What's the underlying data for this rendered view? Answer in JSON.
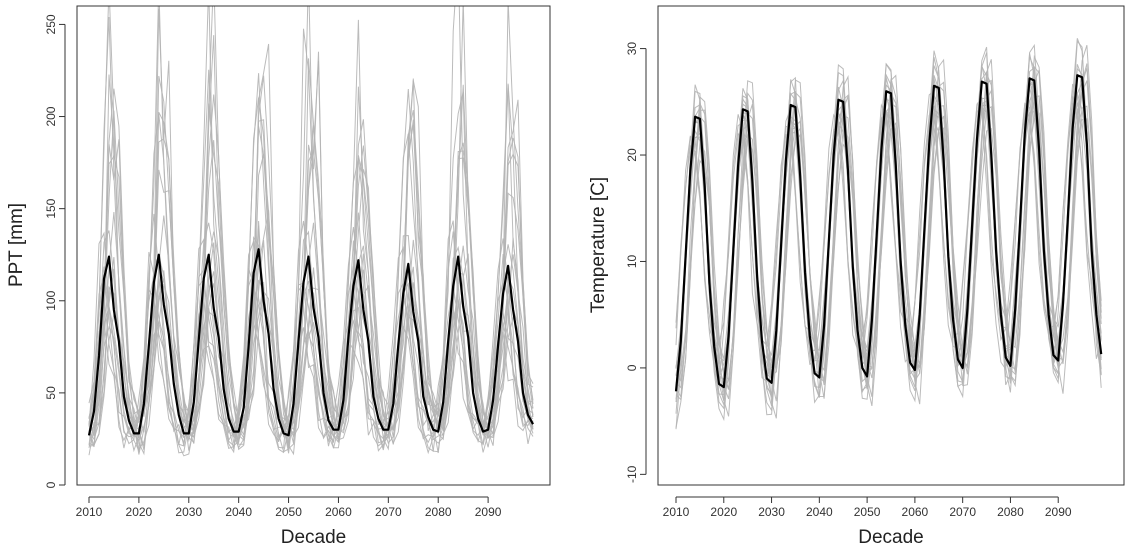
{
  "chart_data": [
    {
      "type": "line",
      "xlabel": "Decade",
      "ylabel": "PPT [mm]",
      "xlim": [
        2010,
        2100
      ],
      "ylim": [
        0,
        260
      ],
      "x_ticks": [
        2010,
        2020,
        2030,
        2040,
        2050,
        2060,
        2070,
        2080,
        2090
      ],
      "y_ticks": [
        0,
        50,
        100,
        150,
        200,
        250
      ],
      "grid": false,
      "legend": "none",
      "ensemble_members": 20,
      "colors": {
        "ensemble": "#b4b4b4",
        "mean": "#000000"
      },
      "series": [
        {
          "role": "ensemble-mean",
          "x": [
            2010,
            2011,
            2012,
            2013,
            2014,
            2015,
            2016,
            2017,
            2018,
            2019,
            2020,
            2021,
            2022,
            2023,
            2024,
            2025,
            2026,
            2027,
            2028,
            2029,
            2030,
            2031,
            2032,
            2033,
            2034,
            2035,
            2036,
            2037,
            2038,
            2039,
            2040,
            2041,
            2042,
            2043,
            2044,
            2045,
            2046,
            2047,
            2048,
            2049,
            2050,
            2051,
            2052,
            2053,
            2054,
            2055,
            2056,
            2057,
            2058,
            2059,
            2060,
            2061,
            2062,
            2063,
            2064,
            2065,
            2066,
            2067,
            2068,
            2069,
            2070,
            2071,
            2072,
            2073,
            2074,
            2075,
            2076,
            2077,
            2078,
            2079,
            2080,
            2081,
            2082,
            2083,
            2084,
            2085,
            2086,
            2087,
            2088,
            2089,
            2090,
            2091,
            2092,
            2093,
            2094,
            2095,
            2096,
            2097,
            2098,
            2099
          ],
          "values": [
            27,
            40,
            70,
            112,
            124,
            95,
            78,
            48,
            35,
            28,
            28,
            44,
            76,
            110,
            125,
            98,
            82,
            55,
            38,
            28,
            28,
            45,
            79,
            112,
            125,
            96,
            80,
            52,
            36,
            29,
            29,
            42,
            75,
            115,
            128,
            100,
            82,
            52,
            36,
            28,
            27,
            44,
            78,
            110,
            124,
            96,
            80,
            50,
            35,
            30,
            30,
            46,
            80,
            108,
            122,
            95,
            78,
            48,
            36,
            30,
            30,
            44,
            76,
            104,
            120,
            94,
            78,
            48,
            37,
            30,
            29,
            45,
            78,
            108,
            124,
            97,
            80,
            50,
            36,
            29,
            30,
            46,
            76,
            104,
            119,
            95,
            78,
            50,
            38,
            33
          ]
        }
      ]
    },
    {
      "type": "line",
      "xlabel": "Decade",
      "ylabel": "Temperature [C]",
      "xlim": [
        2010,
        2100
      ],
      "ylim": [
        -11,
        34
      ],
      "x_ticks": [
        2010,
        2020,
        2030,
        2040,
        2050,
        2060,
        2070,
        2080,
        2090
      ],
      "y_ticks": [
        -10,
        0,
        10,
        20,
        30
      ],
      "grid": false,
      "legend": "none",
      "ensemble_members": 20,
      "colors": {
        "ensemble": "#b4b4b4",
        "mean": "#000000"
      },
      "series": [
        {
          "role": "ensemble-mean",
          "x": [
            2010,
            2011,
            2012,
            2013,
            2014,
            2015,
            2016,
            2017,
            2018,
            2019,
            2020,
            2021,
            2022,
            2023,
            2024,
            2025,
            2026,
            2027,
            2028,
            2029,
            2030,
            2031,
            2032,
            2033,
            2034,
            2035,
            2036,
            2037,
            2038,
            2039,
            2040,
            2041,
            2042,
            2043,
            2044,
            2045,
            2046,
            2047,
            2048,
            2049,
            2050,
            2051,
            2052,
            2053,
            2054,
            2055,
            2056,
            2057,
            2058,
            2059,
            2060,
            2061,
            2062,
            2063,
            2064,
            2065,
            2066,
            2067,
            2068,
            2069,
            2070,
            2071,
            2072,
            2073,
            2074,
            2075,
            2076,
            2077,
            2078,
            2079,
            2080,
            2081,
            2082,
            2083,
            2084,
            2085,
            2086,
            2087,
            2088,
            2089,
            2090,
            2091,
            2092,
            2093,
            2094,
            2095,
            2096,
            2097,
            2098,
            2099
          ],
          "values": [
            -2.2,
            2.5,
            10.5,
            18.5,
            23.6,
            23.4,
            17,
            8,
            2,
            -1.5,
            -1.8,
            3,
            11,
            19,
            24.3,
            24.1,
            17.5,
            8.5,
            2.5,
            -1,
            -1.4,
            3.5,
            11.5,
            19.5,
            24.7,
            24.5,
            18,
            9,
            3,
            -0.5,
            -0.9,
            4,
            12,
            20,
            25.2,
            25,
            18.5,
            9.5,
            3.5,
            0,
            -0.8,
            4.5,
            12.5,
            20.5,
            26,
            25.8,
            19,
            10,
            4,
            0.5,
            -0.2,
            5,
            13,
            21,
            26.5,
            26.3,
            19.5,
            10.5,
            4.5,
            0.8,
            0,
            5.5,
            13.5,
            21.5,
            26.9,
            26.7,
            20,
            11,
            5,
            1,
            0.2,
            5.5,
            13.5,
            22,
            27.2,
            27,
            20.5,
            11,
            5,
            1.2,
            0.7,
            6,
            14,
            22.5,
            27.5,
            27.3,
            21,
            11,
            5,
            1.3
          ]
        }
      ]
    }
  ]
}
